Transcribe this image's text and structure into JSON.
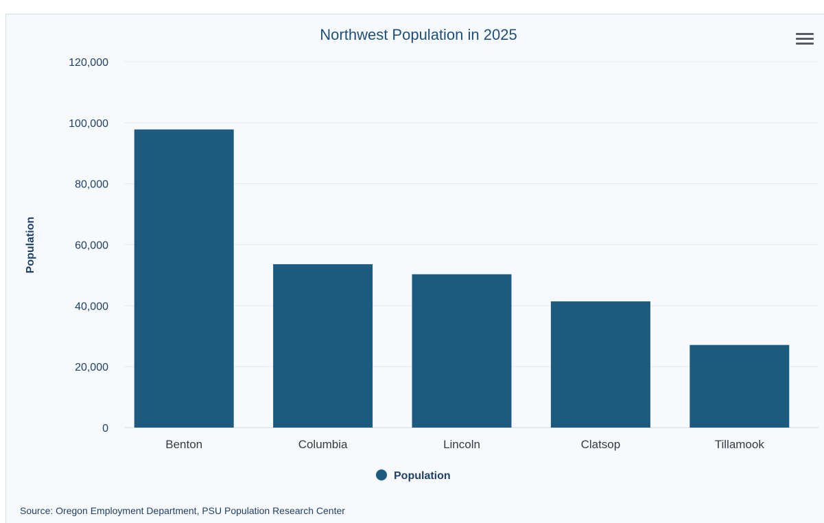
{
  "menu": {
    "icon": "hamburger-menu-icon"
  },
  "source_text": "Source: Oregon Employment Department, PSU Population Research Center",
  "colors": {
    "bar": "#1c5a80",
    "axis_text": "#1f3f66",
    "grid": "#e3e9ee"
  },
  "chart_data": {
    "type": "bar",
    "title": "Northwest Population in 2025",
    "xlabel": "",
    "ylabel": "Population",
    "categories": [
      "Benton",
      "Columbia",
      "Lincoln",
      "Clatsop",
      "Tillamook"
    ],
    "series": [
      {
        "name": "Population",
        "values": [
          97800,
          53600,
          50300,
          41400,
          27100
        ]
      }
    ],
    "ylim": [
      0,
      120000
    ],
    "yticks": [
      0,
      20000,
      40000,
      60000,
      80000,
      100000,
      120000
    ],
    "ytick_labels": [
      "0",
      "20,000",
      "40,000",
      "60,000",
      "80,000",
      "100,000",
      "120,000"
    ],
    "grid": true,
    "legend": "bottom-center"
  }
}
